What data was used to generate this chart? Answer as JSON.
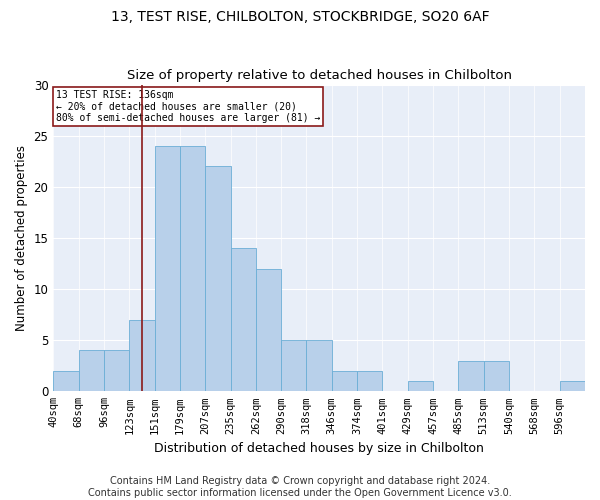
{
  "title": "13, TEST RISE, CHILBOLTON, STOCKBRIDGE, SO20 6AF",
  "subtitle": "Size of property relative to detached houses in Chilbolton",
  "xlabel": "Distribution of detached houses by size in Chilbolton",
  "ylabel": "Number of detached properties",
  "tick_labels": [
    "40sqm",
    "68sqm",
    "96sqm",
    "123sqm",
    "151sqm",
    "179sqm",
    "207sqm",
    "235sqm",
    "262sqm",
    "290sqm",
    "318sqm",
    "346sqm",
    "374sqm",
    "401sqm",
    "429sqm",
    "457sqm",
    "485sqm",
    "513sqm",
    "540sqm",
    "568sqm",
    "596sqm"
  ],
  "bar_values": [
    2,
    4,
    4,
    7,
    24,
    24,
    22,
    14,
    12,
    5,
    5,
    2,
    2,
    0,
    1,
    0,
    3,
    3,
    0,
    0,
    1
  ],
  "bar_color": "#b8d0ea",
  "bar_edgecolor": "#6baed6",
  "background_color": "#e8eef8",
  "vline_pos": 3.5,
  "vline_color": "#8b1a1a",
  "annotation_text": "13 TEST RISE: 136sqm\n← 20% of detached houses are smaller (20)\n80% of semi-detached houses are larger (81) →",
  "annotation_box_color": "#8b1a1a",
  "ylim": [
    0,
    30
  ],
  "yticks": [
    0,
    5,
    10,
    15,
    20,
    25,
    30
  ],
  "title_fontsize": 10,
  "subtitle_fontsize": 9.5,
  "xlabel_fontsize": 9,
  "ylabel_fontsize": 8.5,
  "tick_fontsize": 7.5,
  "footer_fontsize": 7,
  "footer": "Contains HM Land Registry data © Crown copyright and database right 2024.\nContains public sector information licensed under the Open Government Licence v3.0."
}
